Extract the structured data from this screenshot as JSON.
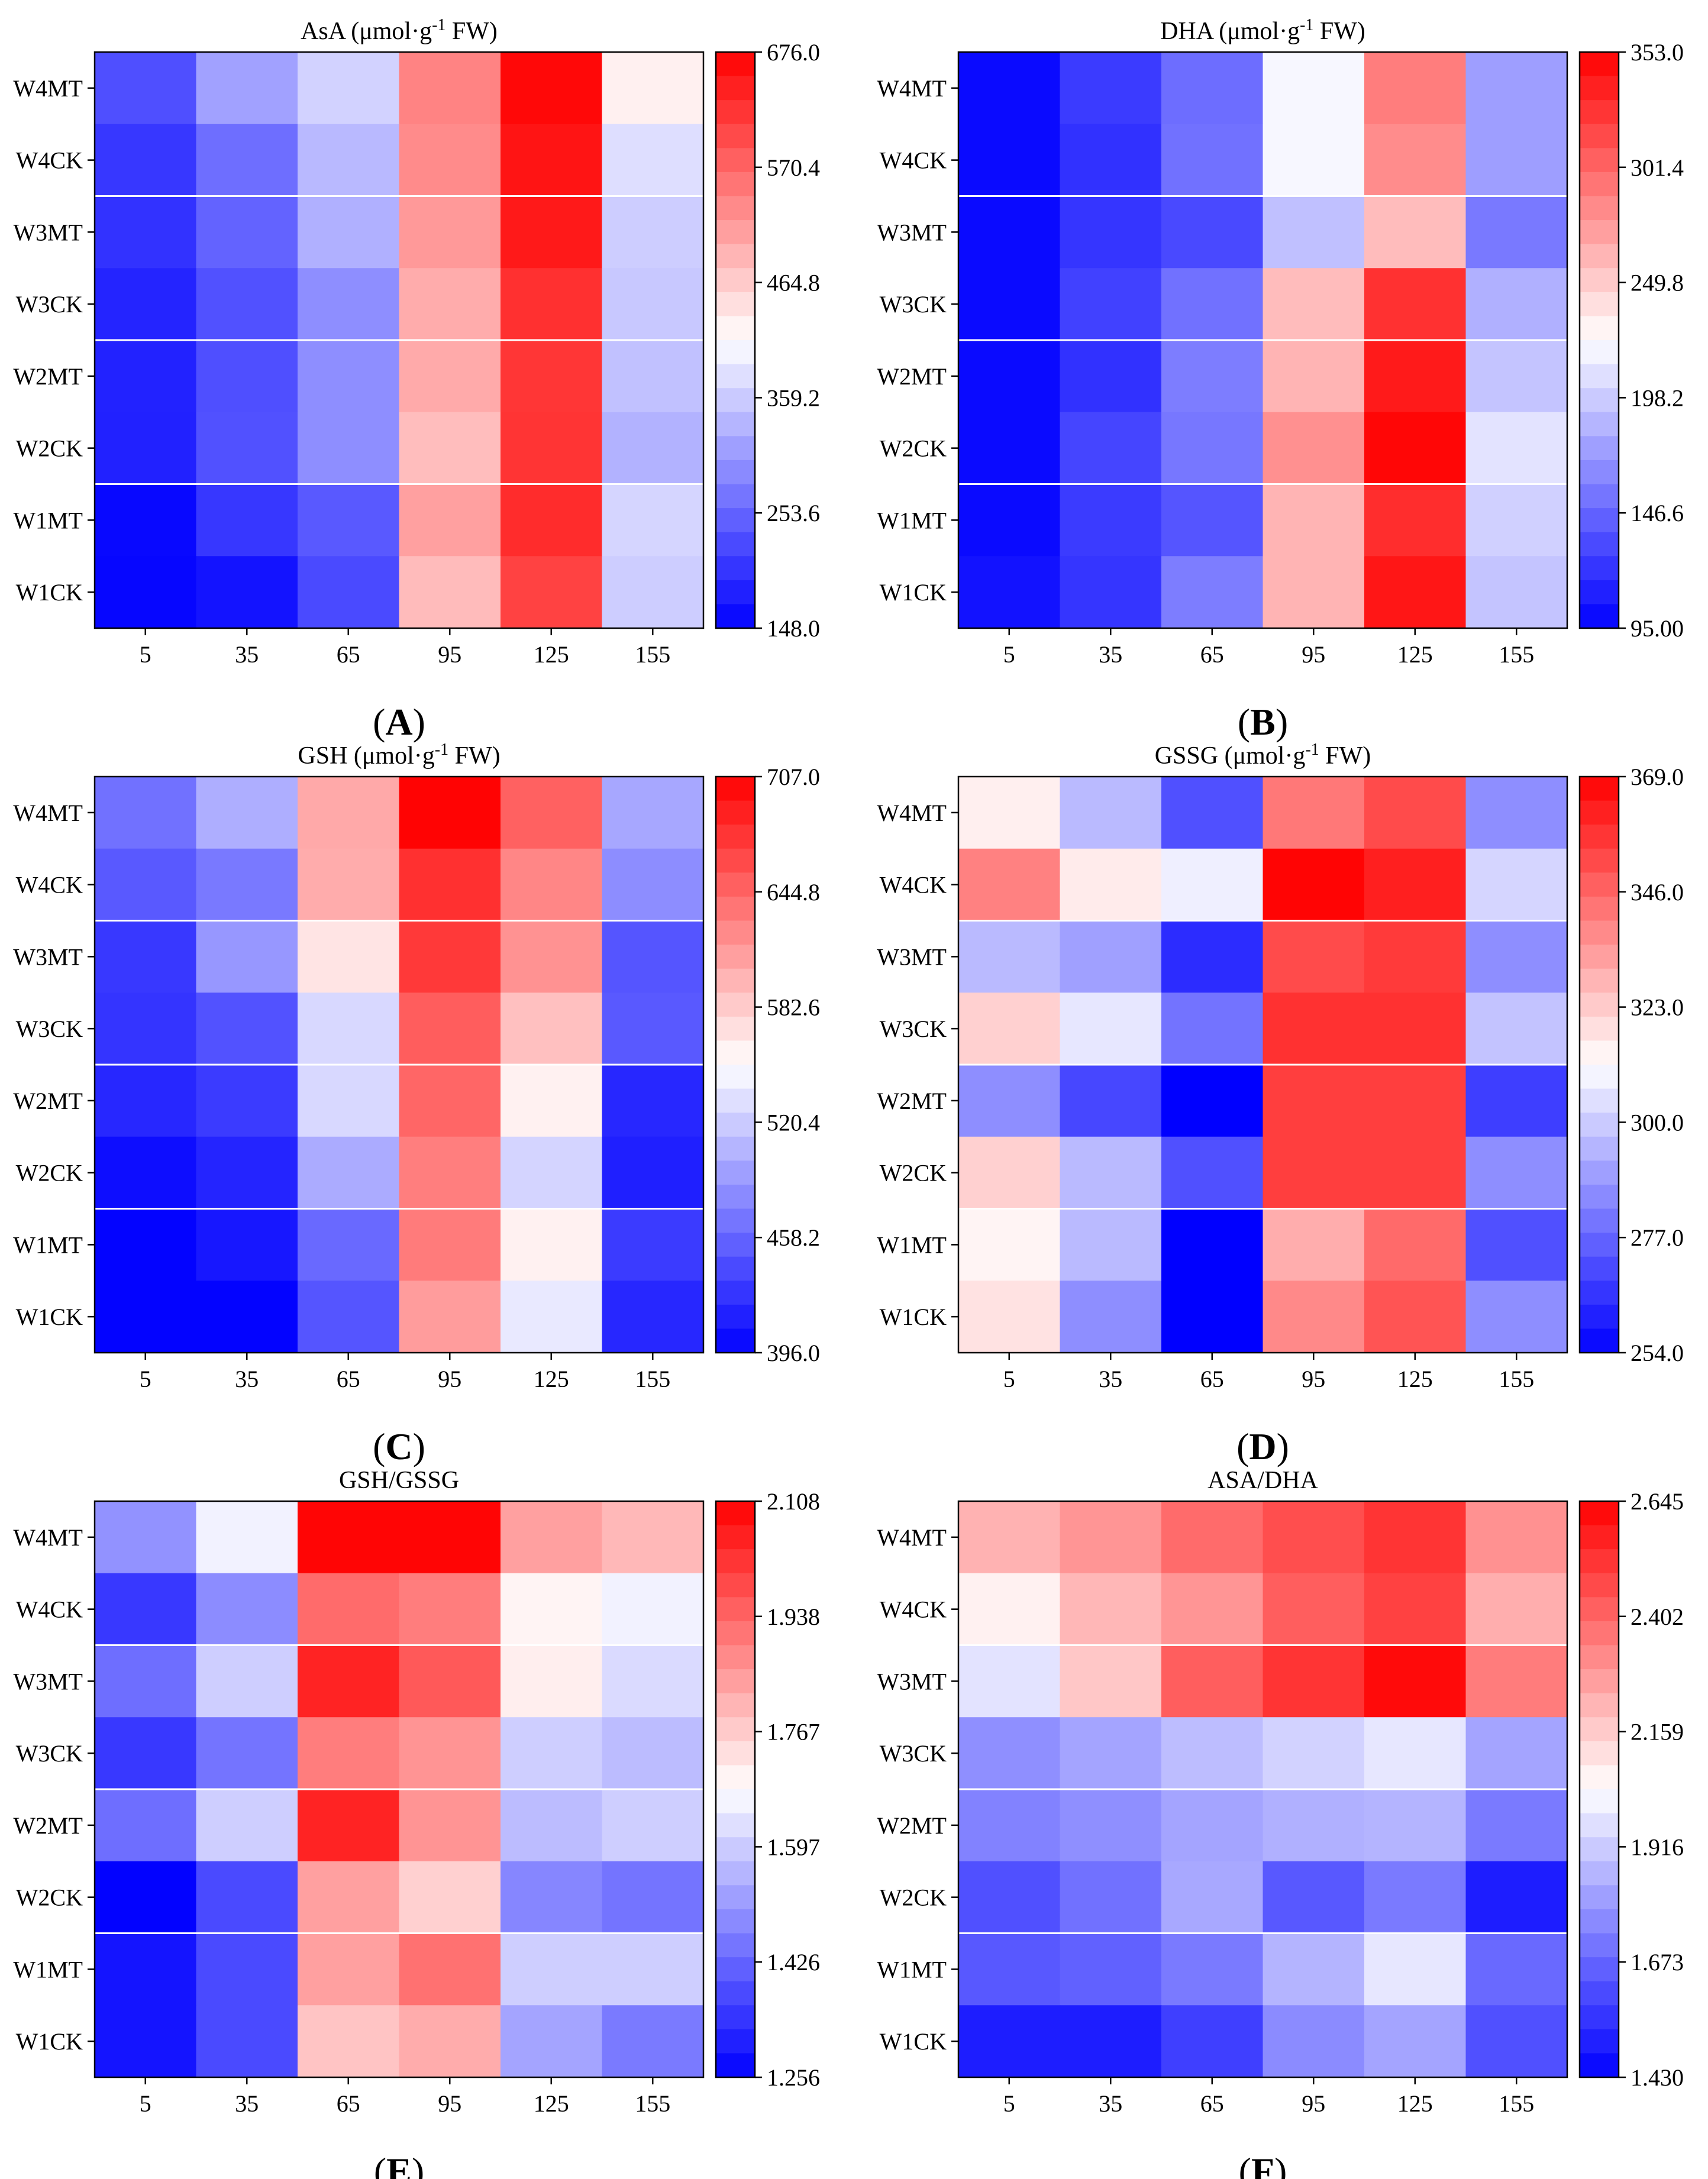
{
  "chart_data": [
    {
      "type": "heatmap",
      "title": "AsA (μmol·g-1 FW)",
      "title_main": "AsA (μmol·g",
      "title_sup": "-1",
      "title_tail": " FW)",
      "panel_label": "A",
      "rows": [
        "W4MT",
        "W4CK",
        "W3MT",
        "W3CK",
        "W2MT",
        "W2CK",
        "W1MT",
        "W1CK"
      ],
      "columns": [
        "5",
        "35",
        "65",
        "95",
        "125",
        "155"
      ],
      "colorbar_ticks": [
        "676.0",
        "570.4",
        "464.8",
        "359.2",
        "253.6",
        "148.0"
      ],
      "range": [
        148.0,
        676.0
      ],
      "values": [
        [
          230,
          315,
          365,
          540,
          668,
          428
        ],
        [
          205,
          262,
          340,
          532,
          655,
          378
        ],
        [
          200,
          250,
          330,
          518,
          650,
          360
        ],
        [
          185,
          232,
          295,
          498,
          626,
          355
        ],
        [
          183,
          230,
          295,
          500,
          620,
          348
        ],
        [
          182,
          232,
          295,
          480,
          622,
          332
        ],
        [
          156,
          205,
          240,
          510,
          630,
          368
        ],
        [
          154,
          168,
          225,
          482,
          608,
          360
        ]
      ]
    },
    {
      "type": "heatmap",
      "title": "DHA (μmol·g-1 FW)",
      "title_main": "DHA (μmol·g",
      "title_sup": "-1",
      "title_tail": " FW)",
      "panel_label": "B",
      "rows": [
        "W4MT",
        "W4CK",
        "W3MT",
        "W3CK",
        "W2MT",
        "W2CK",
        "W1MT",
        "W1CK"
      ],
      "columns": [
        "5",
        "35",
        "65",
        "95",
        "125",
        "155"
      ],
      "colorbar_ticks": [
        "353.0",
        "301.4",
        "249.8",
        "198.2",
        "146.6",
        "95.00"
      ],
      "range": [
        95.0,
        353.0
      ],
      "values": [
        [
          100,
          125,
          150,
          220,
          290,
          175
        ],
        [
          100,
          120,
          152,
          220,
          282,
          175
        ],
        [
          100,
          122,
          132,
          192,
          258,
          156
        ],
        [
          100,
          128,
          152,
          258,
          328,
          184
        ],
        [
          100,
          120,
          158,
          262,
          340,
          194
        ],
        [
          100,
          130,
          155,
          280,
          350,
          210
        ],
        [
          100,
          125,
          138,
          262,
          330,
          200
        ],
        [
          104,
          122,
          158,
          262,
          342,
          194
        ]
      ]
    },
    {
      "type": "heatmap",
      "title": "GSH (μmol·g-1 FW)",
      "title_main": "GSH (μmol·g",
      "title_sup": "-1",
      "title_tail": " FW)",
      "panel_label": "C",
      "rows": [
        "W4MT",
        "W4CK",
        "W3MT",
        "W3CK",
        "W2MT",
        "W2CK",
        "W1MT",
        "W1CK"
      ],
      "columns": [
        "5",
        "35",
        "65",
        "95",
        "125",
        "155"
      ],
      "colorbar_ticks": [
        "707.0",
        "644.8",
        "582.6",
        "520.4",
        "458.2",
        "396.0"
      ],
      "range": [
        396.0,
        707.0
      ],
      "values": [
        [
          465,
          502,
          604,
          705,
          648,
          498
        ],
        [
          450,
          470,
          602,
          678,
          625,
          482
        ],
        [
          430,
          488,
          568,
          672,
          618,
          448
        ],
        [
          428,
          446,
          528,
          650,
          590,
          450
        ],
        [
          420,
          432,
          528,
          645,
          560,
          420
        ],
        [
          404,
          418,
          500,
          630,
          525,
          415
        ],
        [
          398,
          410,
          460,
          632,
          560,
          432
        ],
        [
          398,
          398,
          448,
          612,
          538,
          420
        ]
      ]
    },
    {
      "type": "heatmap",
      "title": "GSSG (μmol·g-1 FW)",
      "title_main": "GSSG (μmol·g",
      "title_sup": "-1",
      "title_tail": " FW)",
      "panel_label": "D",
      "rows": [
        "W4MT",
        "W4CK",
        "W3MT",
        "W3CK",
        "W2MT",
        "W2CK",
        "W1MT",
        "W1CK"
      ],
      "columns": [
        "5",
        "35",
        "65",
        "95",
        "125",
        "155"
      ],
      "colorbar_ticks": [
        "369.0",
        "346.0",
        "323.0",
        "300.0",
        "277.0",
        "254.0"
      ],
      "range": [
        254.0,
        369.0
      ],
      "values": [
        [
          315,
          296,
          272,
          342,
          352,
          286
        ],
        [
          340,
          316,
          308,
          368,
          362,
          302
        ],
        [
          296,
          290,
          264,
          352,
          356,
          286
        ],
        [
          322,
          306,
          280,
          358,
          358,
          298
        ],
        [
          286,
          270,
          254,
          355,
          355,
          268
        ],
        [
          322,
          296,
          272,
          355,
          355,
          286
        ],
        [
          314,
          296,
          254,
          330,
          345,
          272
        ],
        [
          318,
          286,
          254,
          338,
          350,
          286
        ]
      ]
    },
    {
      "type": "heatmap",
      "title": "GSH/GSSG",
      "title_main": "GSH/GSSG",
      "title_sup": "",
      "title_tail": "",
      "panel_label": "E",
      "rows": [
        "W4MT",
        "W4CK",
        "W3MT",
        "W3CK",
        "W2MT",
        "W2CK",
        "W1MT",
        "W1CK"
      ],
      "columns": [
        "5",
        "35",
        "65",
        "95",
        "125",
        "155"
      ],
      "colorbar_ticks": [
        "2.108",
        "1.938",
        "1.767",
        "1.597",
        "1.426",
        "1.256"
      ],
      "range": [
        1.256,
        2.108
      ],
      "values": [
        [
          1.5,
          1.66,
          2.1,
          2.1,
          1.84,
          1.8
        ],
        [
          1.35,
          1.49,
          1.93,
          1.9,
          1.7,
          1.66
        ],
        [
          1.44,
          1.6,
          2.05,
          1.96,
          1.71,
          1.62
        ],
        [
          1.35,
          1.45,
          1.9,
          1.86,
          1.6,
          1.57
        ],
        [
          1.44,
          1.6,
          2.05,
          1.86,
          1.57,
          1.6
        ],
        [
          1.26,
          1.38,
          1.84,
          1.76,
          1.48,
          1.45
        ],
        [
          1.29,
          1.38,
          1.84,
          1.92,
          1.6,
          1.6
        ],
        [
          1.29,
          1.38,
          1.78,
          1.82,
          1.53,
          1.46
        ]
      ]
    },
    {
      "type": "heatmap",
      "title": "ASA/DHA",
      "title_main": "ASA/DHA",
      "title_sup": "",
      "title_tail": "",
      "panel_label": "F",
      "rows": [
        "W4MT",
        "W4CK",
        "W3MT",
        "W3CK",
        "W2MT",
        "W2CK",
        "W1MT",
        "W1CK"
      ],
      "columns": [
        "5",
        "35",
        "65",
        "95",
        "125",
        "155"
      ],
      "colorbar_ticks": [
        "2.645",
        "2.402",
        "2.159",
        "1.916",
        "1.673",
        "1.430"
      ],
      "range": [
        1.43,
        2.645
      ],
      "values": [
        [
          2.22,
          2.29,
          2.39,
          2.46,
          2.52,
          2.3
        ],
        [
          2.07,
          2.21,
          2.29,
          2.42,
          2.49,
          2.23
        ],
        [
          1.97,
          2.17,
          2.42,
          2.52,
          2.62,
          2.35
        ],
        [
          1.77,
          1.82,
          1.88,
          1.93,
          1.98,
          1.82
        ],
        [
          1.74,
          1.77,
          1.82,
          1.85,
          1.86,
          1.72
        ],
        [
          1.62,
          1.7,
          1.83,
          1.64,
          1.72,
          1.5
        ],
        [
          1.64,
          1.66,
          1.72,
          1.86,
          1.98,
          1.68
        ],
        [
          1.5,
          1.5,
          1.58,
          1.76,
          1.82,
          1.62
        ]
      ]
    }
  ]
}
